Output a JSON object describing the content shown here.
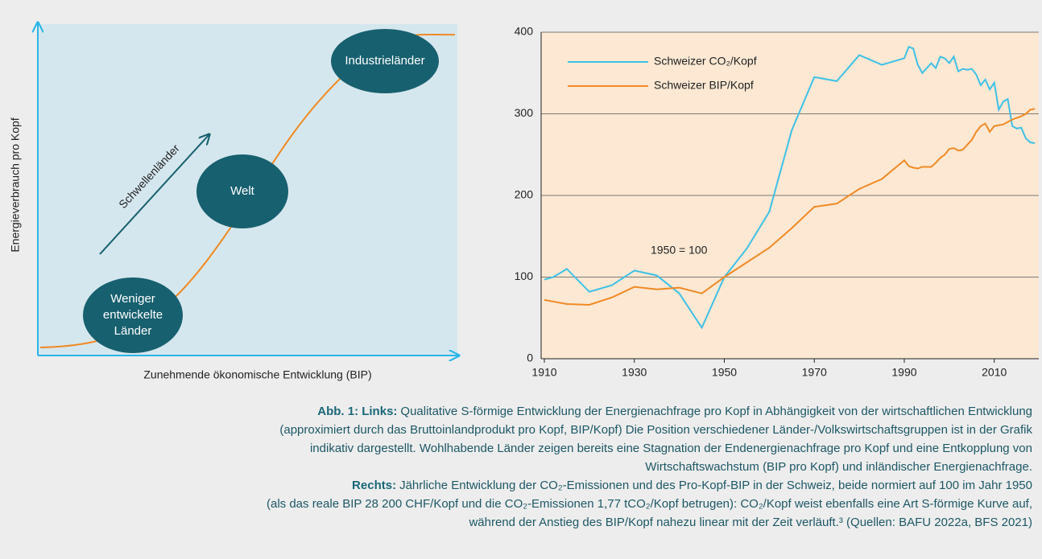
{
  "left_diagram": {
    "ylabel": "Energieverbrauch pro Kopf",
    "xlabel": "Zunehmende ökonomische Entwicklung (BIP)",
    "arrow_label": "Schwellenländer",
    "nodes": [
      {
        "label": [
          "Industrieländer"
        ]
      },
      {
        "label": [
          "Welt"
        ]
      },
      {
        "label": [
          "Weniger",
          "entwickelte",
          "Länder"
        ]
      }
    ]
  },
  "chart_data": {
    "type": "line",
    "annotation": "1950 = 100",
    "x": [
      1910,
      1912,
      1915,
      1920,
      1925,
      1930,
      1935,
      1940,
      1945,
      1950,
      1955,
      1960,
      1965,
      1970,
      1975,
      1980,
      1985,
      1990,
      1991,
      1992,
      1993,
      1994,
      1996,
      1997,
      1998,
      1999,
      2000,
      2001,
      2002,
      2003,
      2004,
      2005,
      2006,
      2007,
      2008,
      2009,
      2010,
      2011,
      2012,
      2013,
      2014,
      2015,
      2016,
      2017,
      2018,
      2019
    ],
    "series": [
      {
        "name": "Schweizer CO₂/Kopf",
        "color": "#3ec1e6",
        "values": [
          97,
          100,
          110,
          82,
          90,
          108,
          102,
          80,
          38,
          100,
          135,
          180,
          280,
          345,
          340,
          372,
          360,
          368,
          382,
          380,
          360,
          350,
          362,
          356,
          370,
          368,
          362,
          370,
          352,
          355,
          354,
          355,
          348,
          335,
          342,
          330,
          338,
          305,
          315,
          318,
          285,
          282,
          283,
          270,
          265,
          264
        ]
      },
      {
        "name": "Schweizer BIP/Kopf",
        "color": "#f08a24",
        "values": [
          72,
          70,
          67,
          66,
          75,
          88,
          85,
          87,
          80,
          100,
          118,
          136,
          160,
          186,
          190,
          208,
          220,
          243,
          236,
          234,
          233,
          235,
          235,
          240,
          246,
          250,
          257,
          258,
          255,
          256,
          262,
          268,
          278,
          285,
          288,
          278,
          285,
          286,
          287,
          290,
          293,
          295,
          297,
          300,
          305,
          306
        ]
      }
    ],
    "xlim": [
      1910,
      2019
    ],
    "xticks": [
      1910,
      1930,
      1950,
      1970,
      1990,
      2010
    ],
    "ylim": [
      0,
      400
    ],
    "yticks": [
      0,
      100,
      200,
      300,
      400
    ],
    "grid": true,
    "legend": "upper left"
  },
  "caption": {
    "links_label": "Abb. 1: Links:",
    "links_lines": [
      "Qualitative S-förmige Entwicklung der Energienachfrage pro Kopf in Abhängigkeit von der wirtschaftlichen Entwicklung",
      "(approximiert durch das Bruttoinlandprodukt pro Kopf, BIP/Kopf) Die Position verschiedener Länder-/Volkswirtschaftsgruppen ist in der Grafik",
      "indikativ dargestellt. Wohlhabende Länder zeigen bereits eine Stagnation der Endenergienachfrage pro Kopf und eine Entkopplung von",
      "Wirtschaftswachstum (BIP pro Kopf) und inländischer Energienachfrage."
    ],
    "rechts_label": "Rechts:",
    "rechts_lines": [
      "Jährliche Entwicklung der CO₂-Emissionen und des Pro-Kopf-BIP in der Schweiz, beide normiert auf 100 im Jahr 1950",
      "(als das reale BIP 28 200 CHF/Kopf und die CO₂-Emissionen 1,77 tCO₂/Kopf betrugen): CO₂/Kopf weist ebenfalls eine Art S-förmige Kurve auf,",
      "während der Anstieg des BIP/Kopf nahezu linear mit der Zeit verläuft.³ (Quellen: BAFU 2022a, BFS 2021)"
    ]
  }
}
